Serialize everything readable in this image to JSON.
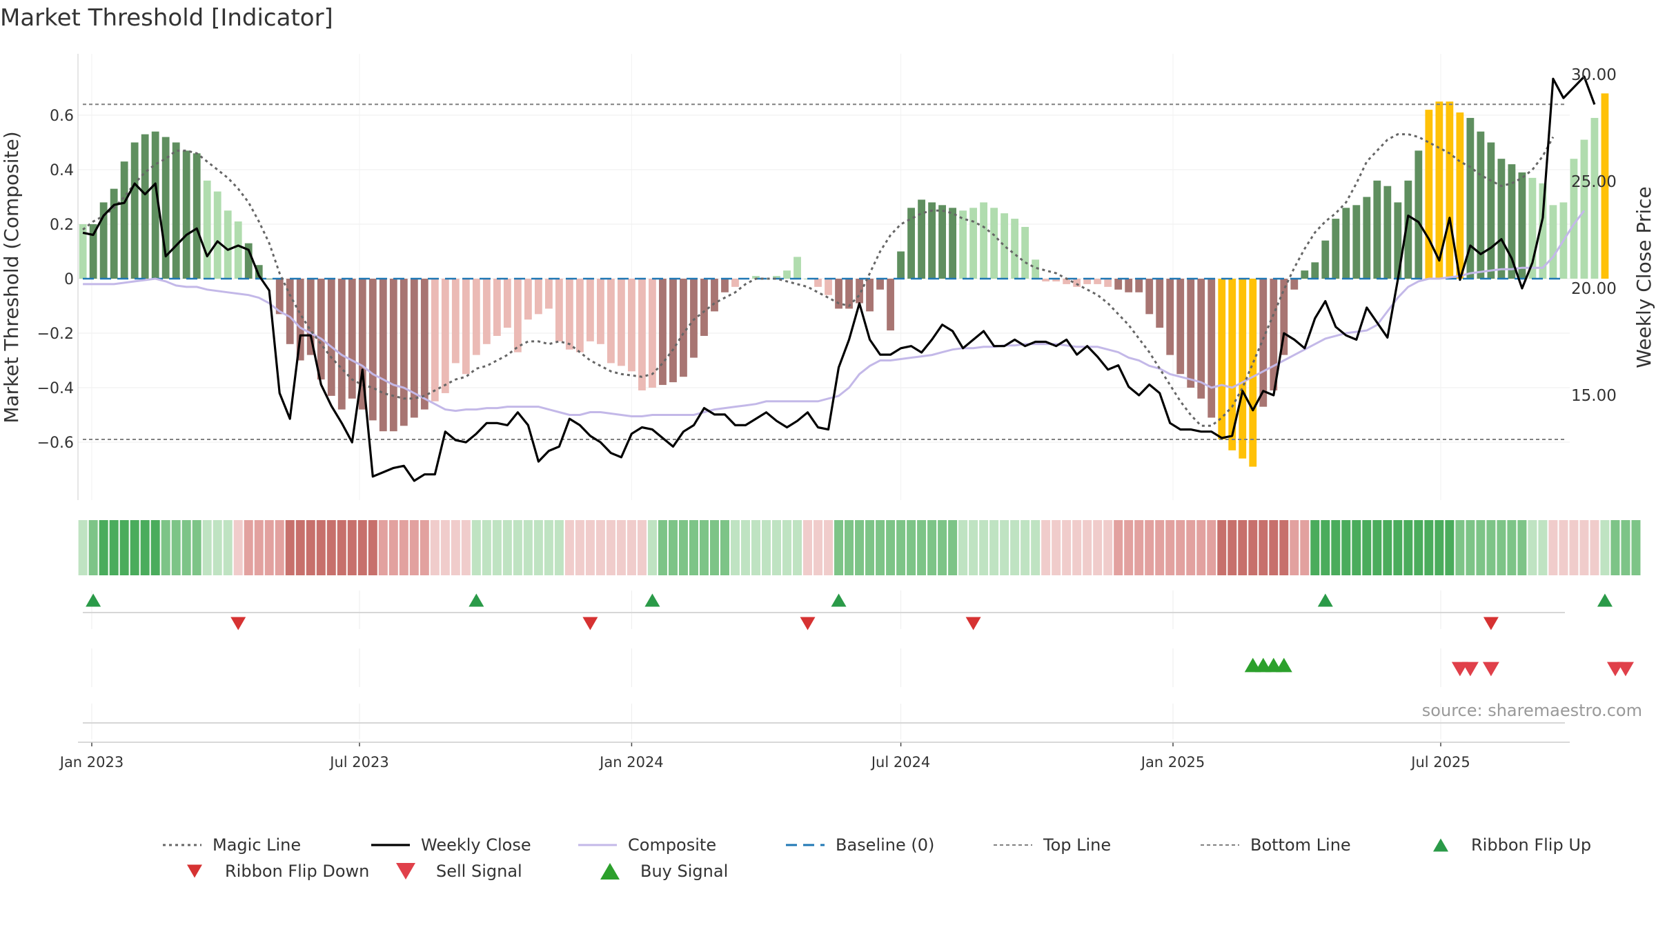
{
  "title": "Market Threshold [Indicator]",
  "source": "source: sharemaestro.com",
  "colors": {
    "bull_strong": "#5f8f5f",
    "bull_weak": "#b0dcae",
    "bear_strong": "#a87572",
    "bear_weak": "#ebbab5",
    "extreme": "#ffc107",
    "close": "#000000",
    "composite": "#c3b8e8",
    "magic": "#666666",
    "baseline": "#1f77b4",
    "threshold": "#808080",
    "buy": "#2ca02c",
    "sell": "#d62728",
    "ribbon_up": "#2a9a48",
    "ribbon_down": "#d63232"
  },
  "chart_data": {
    "type": "bar",
    "title": "Market Threshold [Indicator]",
    "x_start": "2022-12-26",
    "x_interval": "weekly",
    "ylabel": "Market Threshold (Composite)",
    "y2label": "Weekly Close Price",
    "ylim": [
      -0.75,
      0.75
    ],
    "y2lim": [
      10.0,
      31.0
    ],
    "yticks": [
      "0.6",
      "0.4",
      "0.2",
      "0",
      "−0.2",
      "−0.4",
      "−0.6"
    ],
    "y2ticks": [
      "30.00",
      "25.00",
      "20.00",
      "15.00"
    ],
    "xticks": [
      {
        "label": "Jan 2023",
        "date": "2023-01-01"
      },
      {
        "label": "Jul 2023",
        "date": "2023-07-01"
      },
      {
        "label": "Jan 2024",
        "date": "2024-01-01"
      },
      {
        "label": "Jul 2024",
        "date": "2024-07-01"
      },
      {
        "label": "Jan 2025",
        "date": "2025-01-01"
      },
      {
        "label": "Jul 2025",
        "date": "2025-07-01"
      }
    ],
    "top_line": 0.64,
    "bottom_line": -0.59,
    "baseline": 0,
    "series": [
      {
        "name": "Composite (bars)",
        "values": [
          0.2,
          0.2,
          0.28,
          0.33,
          0.43,
          0.5,
          0.53,
          0.54,
          0.52,
          0.5,
          0.47,
          0.46,
          0.36,
          0.32,
          0.25,
          0.21,
          0.13,
          0.05,
          0.0,
          -0.13,
          -0.24,
          -0.3,
          -0.28,
          -0.37,
          -0.43,
          -0.48,
          -0.44,
          -0.48,
          -0.52,
          -0.56,
          -0.56,
          -0.54,
          -0.51,
          -0.48,
          -0.45,
          -0.42,
          -0.31,
          -0.35,
          -0.28,
          -0.24,
          -0.21,
          -0.18,
          -0.27,
          -0.15,
          -0.13,
          -0.11,
          -0.23,
          -0.26,
          -0.27,
          -0.23,
          -0.24,
          -0.31,
          -0.32,
          -0.34,
          -0.41,
          -0.4,
          -0.39,
          -0.38,
          -0.36,
          -0.29,
          -0.21,
          -0.12,
          -0.05,
          -0.03,
          0.0,
          0.01,
          0.0,
          0.01,
          0.03,
          0.08,
          0.0,
          -0.03,
          -0.06,
          -0.11,
          -0.11,
          -0.09,
          -0.12,
          -0.04,
          -0.19,
          0.1,
          0.26,
          0.29,
          0.28,
          0.27,
          0.26,
          0.25,
          0.26,
          0.28,
          0.26,
          0.24,
          0.22,
          0.19,
          0.07,
          -0.01,
          -0.01,
          -0.02,
          -0.03,
          -0.02,
          -0.02,
          -0.03,
          -0.04,
          -0.05,
          -0.05,
          -0.13,
          -0.18,
          -0.28,
          -0.35,
          -0.4,
          -0.44,
          -0.51,
          -0.59,
          -0.63,
          -0.66,
          -0.69,
          -0.47,
          -0.41,
          -0.28,
          -0.04,
          0.03,
          0.06,
          0.14,
          0.22,
          0.26,
          0.27,
          0.3,
          0.36,
          0.34,
          0.28,
          0.36,
          0.47,
          0.62,
          0.65,
          0.65,
          0.61,
          0.59,
          0.54,
          0.5,
          0.44,
          0.42,
          0.39,
          0.37,
          0.35,
          0.27,
          0.28,
          0.44,
          0.51,
          0.59,
          0.68
        ]
      },
      {
        "name": "Weekly Close",
        "values": [
          22.6,
          22.5,
          23.4,
          23.9,
          24.0,
          24.9,
          24.4,
          24.9,
          21.5,
          22.0,
          22.5,
          22.8,
          21.5,
          22.2,
          21.8,
          22.0,
          21.8,
          20.6,
          19.9,
          15.1,
          13.9,
          17.8,
          17.8,
          15.5,
          14.5,
          13.7,
          12.8,
          16.2,
          11.2,
          11.4,
          11.6,
          11.7,
          11.0,
          11.3,
          11.3,
          13.3,
          12.9,
          12.8,
          13.2,
          13.7,
          13.7,
          13.6,
          14.2,
          13.6,
          11.9,
          12.4,
          12.6,
          13.9,
          13.6,
          13.1,
          12.8,
          12.3,
          12.1,
          13.2,
          13.5,
          13.4,
          13.0,
          12.6,
          13.3,
          13.6,
          14.4,
          14.1,
          14.1,
          13.6,
          13.6,
          13.9,
          14.2,
          13.8,
          13.5,
          13.8,
          14.2,
          13.5,
          13.4,
          16.3,
          17.6,
          19.3,
          17.6,
          16.9,
          16.9,
          17.2,
          17.3,
          17.0,
          17.6,
          18.3,
          18.0,
          17.2,
          17.6,
          18.0,
          17.3,
          17.3,
          17.6,
          17.3,
          17.5,
          17.5,
          17.3,
          17.6,
          16.9,
          17.3,
          16.8,
          16.2,
          16.4,
          15.4,
          15.0,
          15.5,
          15.1,
          13.7,
          13.4,
          13.4,
          13.3,
          13.3,
          13.0,
          13.1,
          15.2,
          14.3,
          15.2,
          15.0,
          17.9,
          17.6,
          17.2,
          18.6,
          19.4,
          18.2,
          17.8,
          17.6,
          19.1,
          18.4,
          17.7,
          20.4,
          23.4,
          23.1,
          22.3,
          21.3,
          23.3,
          20.4,
          22.0,
          21.6,
          21.9,
          22.3,
          21.4,
          20.0,
          21.2,
          23.3,
          29.8,
          28.9,
          29.4,
          29.9,
          28.6
        ]
      },
      {
        "name": "Composite",
        "values": [
          -0.02,
          -0.02,
          -0.02,
          -0.02,
          -0.015,
          -0.01,
          -0.005,
          0.0,
          -0.01,
          -0.025,
          -0.03,
          -0.03,
          -0.04,
          -0.045,
          -0.05,
          -0.055,
          -0.06,
          -0.07,
          -0.09,
          -0.12,
          -0.14,
          -0.18,
          -0.2,
          -0.22,
          -0.25,
          -0.28,
          -0.3,
          -0.32,
          -0.35,
          -0.37,
          -0.39,
          -0.4,
          -0.42,
          -0.44,
          -0.46,
          -0.48,
          -0.485,
          -0.48,
          -0.48,
          -0.475,
          -0.475,
          -0.47,
          -0.47,
          -0.47,
          -0.47,
          -0.48,
          -0.49,
          -0.5,
          -0.5,
          -0.49,
          -0.49,
          -0.495,
          -0.5,
          -0.505,
          -0.505,
          -0.5,
          -0.5,
          -0.5,
          -0.5,
          -0.5,
          -0.49,
          -0.48,
          -0.475,
          -0.47,
          -0.465,
          -0.46,
          -0.45,
          -0.45,
          -0.45,
          -0.45,
          -0.45,
          -0.45,
          -0.44,
          -0.43,
          -0.4,
          -0.35,
          -0.32,
          -0.3,
          -0.3,
          -0.295,
          -0.29,
          -0.285,
          -0.28,
          -0.27,
          -0.26,
          -0.255,
          -0.255,
          -0.25,
          -0.25,
          -0.245,
          -0.245,
          -0.24,
          -0.24,
          -0.24,
          -0.24,
          -0.245,
          -0.25,
          -0.25,
          -0.25,
          -0.26,
          -0.27,
          -0.29,
          -0.3,
          -0.32,
          -0.33,
          -0.35,
          -0.36,
          -0.37,
          -0.38,
          -0.4,
          -0.39,
          -0.4,
          -0.38,
          -0.36,
          -0.34,
          -0.32,
          -0.3,
          -0.28,
          -0.26,
          -0.24,
          -0.22,
          -0.21,
          -0.2,
          -0.195,
          -0.19,
          -0.17,
          -0.12,
          -0.07,
          -0.03,
          -0.01,
          0.0,
          0.0,
          0.005,
          0.01,
          0.02,
          0.025,
          0.03,
          0.035,
          0.035,
          0.04,
          0.04,
          0.04,
          0.08,
          0.14,
          0.2,
          0.25
        ]
      },
      {
        "name": "Magic Line",
        "values": [
          0.18,
          0.21,
          0.23,
          0.26,
          0.3,
          0.35,
          0.39,
          0.42,
          0.44,
          0.47,
          0.47,
          0.46,
          0.43,
          0.4,
          0.37,
          0.33,
          0.28,
          0.21,
          0.13,
          0.02,
          -0.06,
          -0.13,
          -0.19,
          -0.24,
          -0.29,
          -0.33,
          -0.37,
          -0.39,
          -0.4,
          -0.42,
          -0.43,
          -0.44,
          -0.44,
          -0.43,
          -0.41,
          -0.39,
          -0.37,
          -0.36,
          -0.33,
          -0.32,
          -0.3,
          -0.28,
          -0.25,
          -0.23,
          -0.23,
          -0.24,
          -0.23,
          -0.24,
          -0.27,
          -0.3,
          -0.32,
          -0.34,
          -0.35,
          -0.355,
          -0.36,
          -0.35,
          -0.31,
          -0.26,
          -0.2,
          -0.15,
          -0.12,
          -0.09,
          -0.07,
          -0.05,
          -0.02,
          0.0,
          0.0,
          0.0,
          -0.01,
          -0.02,
          -0.03,
          -0.05,
          -0.07,
          -0.09,
          -0.1,
          -0.06,
          0.02,
          0.1,
          0.16,
          0.2,
          0.22,
          0.24,
          0.25,
          0.25,
          0.24,
          0.22,
          0.21,
          0.19,
          0.16,
          0.12,
          0.09,
          0.06,
          0.04,
          0.03,
          0.02,
          0.0,
          -0.02,
          -0.04,
          -0.06,
          -0.09,
          -0.13,
          -0.17,
          -0.22,
          -0.27,
          -0.33,
          -0.39,
          -0.45,
          -0.5,
          -0.54,
          -0.54,
          -0.51,
          -0.47,
          -0.4,
          -0.31,
          -0.22,
          -0.13,
          -0.04,
          0.04,
          0.11,
          0.17,
          0.21,
          0.24,
          0.28,
          0.35,
          0.43,
          0.47,
          0.51,
          0.53,
          0.53,
          0.52,
          0.5,
          0.48,
          0.46,
          0.43,
          0.41,
          0.38,
          0.36,
          0.34,
          0.35,
          0.37,
          0.4,
          0.45,
          0.52
        ]
      }
    ],
    "ribbon": [
      1,
      2,
      3,
      3,
      3,
      3,
      3,
      3,
      2,
      2,
      2,
      2,
      1,
      1,
      1,
      -1,
      -2,
      -2,
      -2,
      -2,
      -3,
      -3,
      -3,
      -3,
      -3,
      -3,
      -3,
      -3,
      -3,
      -2,
      -2,
      -2,
      -2,
      -2,
      -1,
      -1,
      -1,
      -1,
      1,
      1,
      1,
      1,
      1,
      1,
      1,
      1,
      1,
      -1,
      -1,
      -1,
      -1,
      -1,
      -1,
      -1,
      -1,
      1,
      2,
      2,
      2,
      2,
      2,
      2,
      2,
      1,
      1,
      1,
      1,
      1,
      1,
      1,
      -1,
      -1,
      -1,
      2,
      2,
      2,
      2,
      2,
      2,
      2,
      2,
      2,
      2,
      2,
      2,
      1,
      1,
      1,
      1,
      1,
      1,
      1,
      1,
      -1,
      -1,
      -1,
      -1,
      -1,
      -1,
      -1,
      -2,
      -2,
      -2,
      -2,
      -2,
      -2,
      -2,
      -2,
      -2,
      -2,
      -3,
      -3,
      -3,
      -3,
      -3,
      -3,
      -3,
      -2,
      -2,
      3,
      3,
      3,
      3,
      3,
      3,
      3,
      3,
      3,
      3,
      3,
      3,
      3,
      3,
      2,
      2,
      2,
      2,
      2,
      2,
      2,
      1,
      1,
      -1,
      -1,
      -1,
      -1,
      -1,
      1,
      2,
      2,
      2
    ],
    "ribbon_flip_up_weeks": [
      1,
      38,
      55,
      73,
      120,
      147
    ],
    "ribbon_flip_down_weeks": [
      15,
      49,
      70,
      86,
      136
    ],
    "buy_signal_weeks": [
      113,
      114,
      115,
      116
    ],
    "sell_signal_weeks": [
      133,
      134,
      136,
      148,
      149
    ],
    "legend": [
      {
        "label": "Magic Line",
        "kind": "line-dotted",
        "color": "#666666"
      },
      {
        "label": "Weekly Close",
        "kind": "line-solid",
        "color": "#000000"
      },
      {
        "label": "Composite",
        "kind": "line-solid",
        "color": "#c3b8e8"
      },
      {
        "label": "Baseline (0)",
        "kind": "line-dashed",
        "color": "#1f77b4"
      },
      {
        "label": "Top Line",
        "kind": "line-dashed",
        "color": "#808080"
      },
      {
        "label": "Bottom Line",
        "kind": "line-dashed",
        "color": "#808080"
      },
      {
        "label": "Ribbon Flip Up",
        "kind": "tri-up",
        "color": "#2a9a48"
      },
      {
        "label": "Ribbon Flip Down",
        "kind": "tri-down",
        "color": "#d63232"
      },
      {
        "label": "Sell Signal",
        "kind": "tri-down-big",
        "color": "#e0404a"
      },
      {
        "label": "Buy Signal",
        "kind": "tri-up-big",
        "color": "#2ca02c"
      }
    ]
  }
}
